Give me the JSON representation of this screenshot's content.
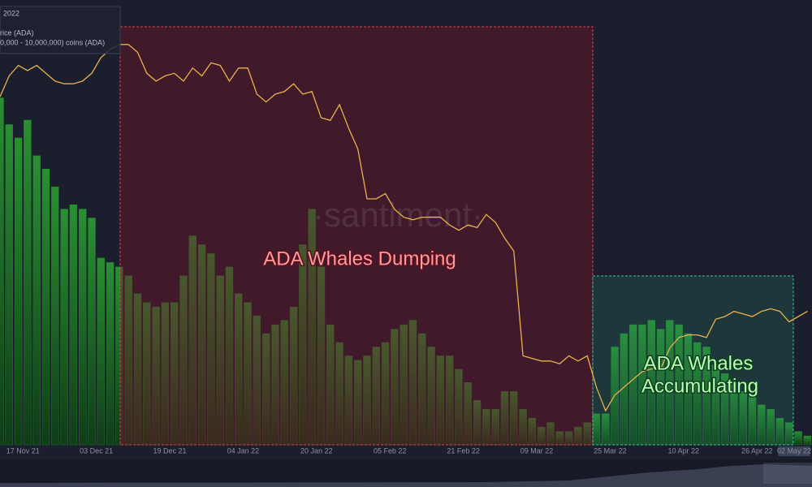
{
  "chart_data": {
    "type": "combo",
    "x": [
      "12 Nov 21",
      "14 Nov 21",
      "16 Nov 21",
      "18 Nov 21",
      "20 Nov 21",
      "22 Nov 21",
      "24 Nov 21",
      "26 Nov 21",
      "28 Nov 21",
      "30 Nov 21",
      "02 Dec 21",
      "04 Dec 21",
      "06 Dec 21",
      "08 Dec 21",
      "10 Dec 21",
      "12 Dec 21",
      "14 Dec 21",
      "16 Dec 21",
      "18 Dec 21",
      "20 Dec 21",
      "22 Dec 21",
      "24 Dec 21",
      "26 Dec 21",
      "28 Dec 21",
      "30 Dec 21",
      "01 Jan 22",
      "03 Jan 22",
      "05 Jan 22",
      "07 Jan 22",
      "09 Jan 22",
      "11 Jan 22",
      "13 Jan 22",
      "15 Jan 22",
      "17 Jan 22",
      "19 Jan 22",
      "21 Jan 22",
      "23 Jan 22",
      "25 Jan 22",
      "27 Jan 22",
      "29 Jan 22",
      "31 Jan 22",
      "02 Feb 22",
      "04 Feb 22",
      "06 Feb 22",
      "08 Feb 22",
      "10 Feb 22",
      "12 Feb 22",
      "14 Feb 22",
      "16 Feb 22",
      "18 Feb 22",
      "20 Feb 22",
      "22 Feb 22",
      "24 Feb 22",
      "26 Feb 22",
      "28 Feb 22",
      "02 Mar 22",
      "04 Mar 22",
      "06 Mar 22",
      "08 Mar 22",
      "10 Mar 22",
      "12 Mar 22",
      "14 Mar 22",
      "16 Mar 22",
      "18 Mar 22",
      "20 Mar 22",
      "22 Mar 22",
      "24 Mar 22",
      "26 Mar 22",
      "28 Mar 22",
      "30 Mar 22",
      "01 Apr 22",
      "03 Apr 22",
      "05 Apr 22",
      "07 Apr 22",
      "09 Apr 22",
      "11 Apr 22",
      "13 Apr 22",
      "15 Apr 22",
      "17 Apr 22",
      "19 Apr 22",
      "21 Apr 22",
      "23 Apr 22",
      "25 Apr 22",
      "27 Apr 22",
      "29 Apr 22",
      "01 May 22",
      "03 May 22",
      "05 May 22",
      "07 May 22"
    ],
    "xlim": [
      "12 Nov 21",
      "08 May 22"
    ],
    "xticks": [
      "17 Nov 21",
      "03 Dec 21",
      "19 Dec 21",
      "04 Jan 22",
      "20 Jan 22",
      "05 Feb 22",
      "21 Feb 22",
      "09 Mar 22",
      "25 Mar 22",
      "10 Apr 22",
      "26 Apr 22"
    ],
    "ylim": [
      0,
      100
    ],
    "y2lim": [
      0.6,
      2.3
    ],
    "legend_title": "2022",
    "series": [
      {
        "name": "0,000 - 10,000,000) coins (ADA)",
        "type": "bar",
        "color": "#1f8a2c",
        "values": [
          78,
          72,
          69,
          73,
          65,
          62,
          58,
          53,
          54,
          53,
          51,
          42,
          41,
          40,
          38,
          34,
          32,
          31,
          32,
          32,
          38,
          47,
          45,
          43,
          38,
          40,
          34,
          32,
          29,
          25,
          27,
          28,
          31,
          45,
          53,
          40,
          27,
          23,
          20,
          19,
          20,
          22,
          23,
          26,
          27,
          28,
          25,
          22,
          20,
          20,
          17,
          14,
          10,
          8,
          8,
          12,
          12,
          8,
          6,
          4,
          5,
          3,
          3,
          4,
          5,
          7,
          7,
          22,
          25,
          27,
          27,
          28,
          26,
          28,
          27,
          25,
          23,
          22,
          18,
          16,
          14,
          12,
          11,
          9,
          8,
          6,
          5,
          3,
          2
        ]
      },
      {
        "name": "rice (ADA)",
        "type": "line",
        "axis": "y2",
        "color": "#e8b24a",
        "values": [
          1.93,
          2.01,
          2.05,
          2.03,
          2.05,
          2.02,
          1.99,
          1.98,
          1.98,
          1.99,
          2.02,
          2.08,
          2.11,
          2.13,
          2.13,
          2.1,
          2.02,
          1.99,
          2.01,
          2.02,
          1.99,
          2.04,
          2.01,
          2.06,
          2.05,
          1.99,
          2.04,
          2.04,
          1.94,
          1.91,
          1.94,
          1.95,
          1.98,
          1.94,
          1.95,
          1.85,
          1.84,
          1.9,
          1.81,
          1.73,
          1.54,
          1.54,
          1.56,
          1.5,
          1.47,
          1.46,
          1.47,
          1.47,
          1.47,
          1.44,
          1.42,
          1.44,
          1.43,
          1.48,
          1.45,
          1.39,
          1.34,
          0.94,
          0.93,
          0.92,
          0.92,
          0.91,
          0.94,
          0.92,
          0.94,
          0.82,
          0.73,
          0.79,
          0.82,
          0.85,
          0.88,
          0.89,
          0.89,
          0.97,
          1.01,
          1.02,
          1.02,
          1.01,
          1.08,
          1.09,
          1.11,
          1.1,
          1.09,
          1.11,
          1.12,
          1.11,
          1.07,
          1.09,
          1.11
        ]
      }
    ],
    "annotations": [
      {
        "text": "ADA Whales Dumping",
        "color": "#ff9a9a"
      },
      {
        "text": [
          "ADA Whales",
          "Accumulating"
        ],
        "color": "#b8ffb0"
      }
    ],
    "watermark": "·santiment·",
    "cursor_label": "02 May 22"
  }
}
